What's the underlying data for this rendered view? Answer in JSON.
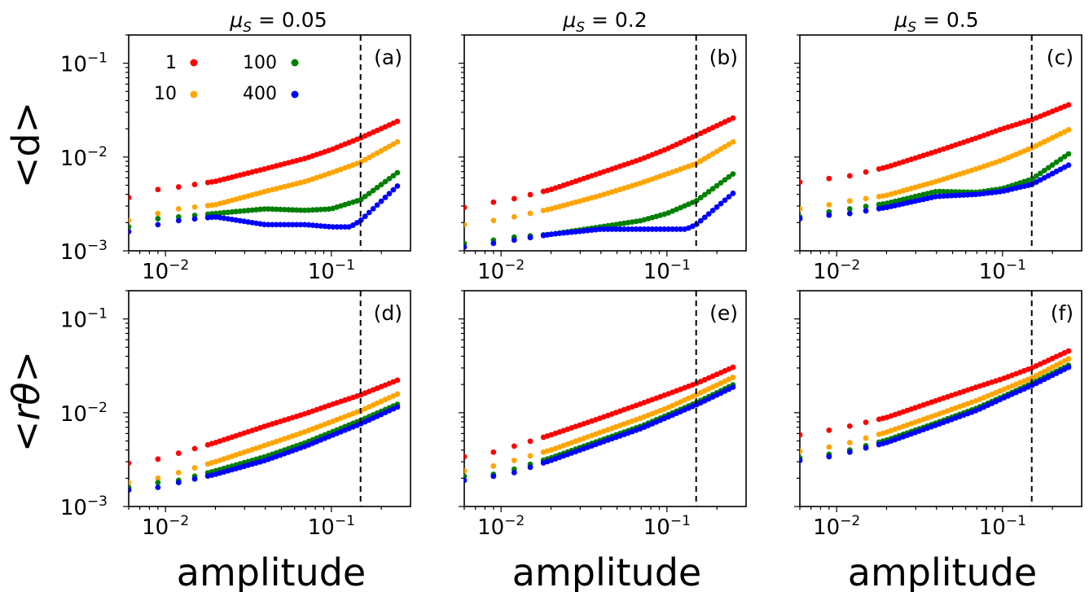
{
  "figure": {
    "ylabel_top": "<d>",
    "ylabel_bottom": "<rθ>",
    "xlabel": "amplitude",
    "column_titles": [
      "μ_S = 0.05",
      "μ_S = 0.2",
      "μ_S = 0.5"
    ],
    "legend": [
      {
        "label": "1",
        "color": "#ff0000"
      },
      {
        "label": "10",
        "color": "#ffa500"
      },
      {
        "label": "100",
        "color": "#008000"
      },
      {
        "label": "400",
        "color": "#0000ff"
      }
    ],
    "vline_x": 0.15,
    "x_ticks": [
      "10^-2",
      "10^-1"
    ],
    "y_ticks": [
      "10^-3",
      "10^-2",
      "10^-1"
    ]
  },
  "chart_data": [
    {
      "type": "scatter",
      "panel": "(a)",
      "title": "μ_S = 0.05",
      "ylabel": "<d>",
      "xlabel": "",
      "xscale": "log",
      "yscale": "log",
      "xlim": [
        0.006,
        0.3
      ],
      "ylim": [
        0.001,
        0.2
      ],
      "vline": 0.15,
      "series": [
        {
          "name": "1",
          "points": [
            [
              0.006,
              0.0037
            ],
            [
              0.009,
              0.0045
            ],
            [
              0.012,
              0.0048
            ],
            [
              0.02,
              0.0055
            ],
            [
              0.04,
              0.0075
            ],
            [
              0.07,
              0.0097
            ],
            [
              0.1,
              0.012
            ],
            [
              0.15,
              0.016
            ],
            [
              0.25,
              0.024
            ]
          ]
        },
        {
          "name": "10",
          "points": [
            [
              0.006,
              0.0021
            ],
            [
              0.009,
              0.0025
            ],
            [
              0.012,
              0.0028
            ],
            [
              0.02,
              0.0031
            ],
            [
              0.04,
              0.0043
            ],
            [
              0.07,
              0.0055
            ],
            [
              0.1,
              0.0068
            ],
            [
              0.15,
              0.0088
            ],
            [
              0.25,
              0.0145
            ]
          ]
        },
        {
          "name": "100",
          "points": [
            [
              0.006,
              0.0018
            ],
            [
              0.009,
              0.0022
            ],
            [
              0.012,
              0.0023
            ],
            [
              0.02,
              0.0025
            ],
            [
              0.04,
              0.0028
            ],
            [
              0.07,
              0.0027
            ],
            [
              0.1,
              0.0028
            ],
            [
              0.15,
              0.0035
            ],
            [
              0.25,
              0.0068
            ]
          ]
        },
        {
          "name": "400",
          "points": [
            [
              0.006,
              0.0016
            ],
            [
              0.009,
              0.0019
            ],
            [
              0.012,
              0.0021
            ],
            [
              0.02,
              0.0023
            ],
            [
              0.04,
              0.0019
            ],
            [
              0.07,
              0.0019
            ],
            [
              0.1,
              0.0018
            ],
            [
              0.13,
              0.0018
            ],
            [
              0.15,
              0.0021
            ],
            [
              0.25,
              0.0049
            ]
          ]
        }
      ]
    },
    {
      "type": "scatter",
      "panel": "(b)",
      "title": "μ_S = 0.2",
      "ylabel": "",
      "xlabel": "",
      "xscale": "log",
      "yscale": "log",
      "xlim": [
        0.006,
        0.3
      ],
      "ylim": [
        0.001,
        0.2
      ],
      "vline": 0.15,
      "series": [
        {
          "name": "1",
          "points": [
            [
              0.006,
              0.0029
            ],
            [
              0.009,
              0.0033
            ],
            [
              0.012,
              0.0036
            ],
            [
              0.02,
              0.0045
            ],
            [
              0.04,
              0.0068
            ],
            [
              0.07,
              0.0095
            ],
            [
              0.1,
              0.0122
            ],
            [
              0.15,
              0.017
            ],
            [
              0.25,
              0.026
            ]
          ]
        },
        {
          "name": "10",
          "points": [
            [
              0.006,
              0.0019
            ],
            [
              0.009,
              0.0021
            ],
            [
              0.012,
              0.0023
            ],
            [
              0.02,
              0.0028
            ],
            [
              0.04,
              0.0039
            ],
            [
              0.07,
              0.0053
            ],
            [
              0.1,
              0.0066
            ],
            [
              0.15,
              0.0085
            ],
            [
              0.25,
              0.0145
            ]
          ]
        },
        {
          "name": "100",
          "points": [
            [
              0.006,
              0.0012
            ],
            [
              0.009,
              0.0013
            ],
            [
              0.012,
              0.0014
            ],
            [
              0.02,
              0.0015
            ],
            [
              0.04,
              0.0018
            ],
            [
              0.07,
              0.0021
            ],
            [
              0.1,
              0.0025
            ],
            [
              0.15,
              0.0034
            ],
            [
              0.25,
              0.0066
            ]
          ]
        },
        {
          "name": "400",
          "points": [
            [
              0.006,
              0.0011
            ],
            [
              0.009,
              0.0012
            ],
            [
              0.012,
              0.0013
            ],
            [
              0.02,
              0.0015
            ],
            [
              0.04,
              0.0017
            ],
            [
              0.07,
              0.0017
            ],
            [
              0.1,
              0.0017
            ],
            [
              0.13,
              0.0017
            ],
            [
              0.15,
              0.0019
            ],
            [
              0.25,
              0.0041
            ]
          ]
        }
      ]
    },
    {
      "type": "scatter",
      "panel": "(c)",
      "title": "μ_S = 0.5",
      "ylabel": "",
      "xlabel": "",
      "xscale": "log",
      "yscale": "log",
      "xlim": [
        0.006,
        0.3
      ],
      "ylim": [
        0.001,
        0.2
      ],
      "vline": 0.15,
      "series": [
        {
          "name": "1",
          "points": [
            [
              0.006,
              0.0054
            ],
            [
              0.009,
              0.0059
            ],
            [
              0.012,
              0.0063
            ],
            [
              0.02,
              0.0078
            ],
            [
              0.04,
              0.0115
            ],
            [
              0.07,
              0.016
            ],
            [
              0.1,
              0.02
            ],
            [
              0.15,
              0.025
            ],
            [
              0.25,
              0.036
            ]
          ]
        },
        {
          "name": "10",
          "points": [
            [
              0.006,
              0.0028
            ],
            [
              0.009,
              0.0031
            ],
            [
              0.012,
              0.0034
            ],
            [
              0.02,
              0.0039
            ],
            [
              0.04,
              0.0055
            ],
            [
              0.07,
              0.0075
            ],
            [
              0.1,
              0.0093
            ],
            [
              0.15,
              0.0125
            ],
            [
              0.25,
              0.0195
            ]
          ]
        },
        {
          "name": "100",
          "points": [
            [
              0.006,
              0.0023
            ],
            [
              0.009,
              0.0026
            ],
            [
              0.012,
              0.0028
            ],
            [
              0.02,
              0.0032
            ],
            [
              0.04,
              0.0043
            ],
            [
              0.07,
              0.0042
            ],
            [
              0.1,
              0.0046
            ],
            [
              0.15,
              0.0058
            ],
            [
              0.25,
              0.0108
            ]
          ]
        },
        {
          "name": "400",
          "points": [
            [
              0.006,
              0.0022
            ],
            [
              0.009,
              0.0024
            ],
            [
              0.012,
              0.0025
            ],
            [
              0.02,
              0.0029
            ],
            [
              0.04,
              0.0038
            ],
            [
              0.07,
              0.004
            ],
            [
              0.1,
              0.0043
            ],
            [
              0.15,
              0.0051
            ],
            [
              0.25,
              0.0082
            ]
          ]
        }
      ]
    },
    {
      "type": "scatter",
      "panel": "(d)",
      "title": "",
      "ylabel": "<rθ>",
      "xlabel": "amplitude",
      "xscale": "log",
      "yscale": "log",
      "xlim": [
        0.006,
        0.3
      ],
      "ylim": [
        0.001,
        0.2
      ],
      "vline": 0.15,
      "series": [
        {
          "name": "1",
          "points": [
            [
              0.006,
              0.0029
            ],
            [
              0.009,
              0.0032
            ],
            [
              0.012,
              0.0037
            ],
            [
              0.02,
              0.0048
            ],
            [
              0.04,
              0.0072
            ],
            [
              0.07,
              0.0098
            ],
            [
              0.1,
              0.0122
            ],
            [
              0.15,
              0.0155
            ],
            [
              0.25,
              0.0222
            ]
          ]
        },
        {
          "name": "10",
          "points": [
            [
              0.006,
              0.0018
            ],
            [
              0.009,
              0.002
            ],
            [
              0.012,
              0.0023
            ],
            [
              0.02,
              0.003
            ],
            [
              0.04,
              0.0045
            ],
            [
              0.07,
              0.0063
            ],
            [
              0.1,
              0.008
            ],
            [
              0.15,
              0.0105
            ],
            [
              0.25,
              0.0158
            ]
          ]
        },
        {
          "name": "100",
          "points": [
            [
              0.006,
              0.0016
            ],
            [
              0.009,
              0.0018
            ],
            [
              0.012,
              0.0019
            ],
            [
              0.02,
              0.0024
            ],
            [
              0.04,
              0.0034
            ],
            [
              0.07,
              0.0048
            ],
            [
              0.1,
              0.0062
            ],
            [
              0.15,
              0.0083
            ],
            [
              0.25,
              0.0123
            ]
          ]
        },
        {
          "name": "400",
          "points": [
            [
              0.006,
              0.0015
            ],
            [
              0.009,
              0.0016
            ],
            [
              0.012,
              0.0018
            ],
            [
              0.02,
              0.0022
            ],
            [
              0.04,
              0.0031
            ],
            [
              0.07,
              0.0044
            ],
            [
              0.1,
              0.0057
            ],
            [
              0.15,
              0.0076
            ],
            [
              0.25,
              0.0115
            ]
          ]
        }
      ]
    },
    {
      "type": "scatter",
      "panel": "(e)",
      "title": "",
      "ylabel": "",
      "xlabel": "amplitude",
      "xscale": "log",
      "yscale": "log",
      "xlim": [
        0.006,
        0.3
      ],
      "ylim": [
        0.001,
        0.2
      ],
      "vline": 0.15,
      "series": [
        {
          "name": "1",
          "points": [
            [
              0.006,
              0.0034
            ],
            [
              0.009,
              0.0038
            ],
            [
              0.012,
              0.0044
            ],
            [
              0.02,
              0.0058
            ],
            [
              0.04,
              0.0088
            ],
            [
              0.07,
              0.0125
            ],
            [
              0.1,
              0.0157
            ],
            [
              0.15,
              0.0205
            ],
            [
              0.25,
              0.0305
            ]
          ]
        },
        {
          "name": "10",
          "points": [
            [
              0.006,
              0.0024
            ],
            [
              0.009,
              0.0027
            ],
            [
              0.012,
              0.0031
            ],
            [
              0.02,
              0.004
            ],
            [
              0.04,
              0.0062
            ],
            [
              0.07,
              0.0088
            ],
            [
              0.1,
              0.0112
            ],
            [
              0.15,
              0.0155
            ],
            [
              0.25,
              0.0238
            ]
          ]
        },
        {
          "name": "100",
          "points": [
            [
              0.006,
              0.0021
            ],
            [
              0.009,
              0.0022
            ],
            [
              0.012,
              0.0025
            ],
            [
              0.02,
              0.0033
            ],
            [
              0.04,
              0.0051
            ],
            [
              0.07,
              0.0072
            ],
            [
              0.1,
              0.0094
            ],
            [
              0.15,
              0.0128
            ],
            [
              0.25,
              0.0198
            ]
          ]
        },
        {
          "name": "400",
          "points": [
            [
              0.006,
              0.0019
            ],
            [
              0.009,
              0.0021
            ],
            [
              0.012,
              0.0023
            ],
            [
              0.02,
              0.0031
            ],
            [
              0.04,
              0.0048
            ],
            [
              0.07,
              0.0068
            ],
            [
              0.1,
              0.0089
            ],
            [
              0.15,
              0.0121
            ],
            [
              0.25,
              0.0187
            ]
          ]
        }
      ]
    },
    {
      "type": "scatter",
      "panel": "(f)",
      "title": "",
      "ylabel": "",
      "xlabel": "amplitude",
      "xscale": "log",
      "yscale": "log",
      "xlim": [
        0.006,
        0.3
      ],
      "ylim": [
        0.001,
        0.2
      ],
      "vline": 0.15,
      "series": [
        {
          "name": "1",
          "points": [
            [
              0.006,
              0.0058
            ],
            [
              0.009,
              0.0065
            ],
            [
              0.012,
              0.0072
            ],
            [
              0.02,
              0.0089
            ],
            [
              0.04,
              0.0135
            ],
            [
              0.07,
              0.0188
            ],
            [
              0.1,
              0.023
            ],
            [
              0.15,
              0.03
            ],
            [
              0.25,
              0.0455
            ]
          ]
        },
        {
          "name": "10",
          "points": [
            [
              0.006,
              0.0039
            ],
            [
              0.009,
              0.0043
            ],
            [
              0.012,
              0.0048
            ],
            [
              0.02,
              0.0062
            ],
            [
              0.04,
              0.0095
            ],
            [
              0.07,
              0.0135
            ],
            [
              0.1,
              0.0175
            ],
            [
              0.15,
              0.0235
            ],
            [
              0.25,
              0.0375
            ]
          ]
        },
        {
          "name": "100",
          "points": [
            [
              0.006,
              0.0033
            ],
            [
              0.009,
              0.0036
            ],
            [
              0.012,
              0.004
            ],
            [
              0.02,
              0.0051
            ],
            [
              0.04,
              0.0078
            ],
            [
              0.07,
              0.0112
            ],
            [
              0.1,
              0.0148
            ],
            [
              0.15,
              0.0205
            ],
            [
              0.25,
              0.032
            ]
          ]
        },
        {
          "name": "400",
          "points": [
            [
              0.006,
              0.0031
            ],
            [
              0.009,
              0.0034
            ],
            [
              0.012,
              0.0038
            ],
            [
              0.02,
              0.0048
            ],
            [
              0.04,
              0.0074
            ],
            [
              0.07,
              0.0106
            ],
            [
              0.1,
              0.0142
            ],
            [
              0.15,
              0.0195
            ],
            [
              0.25,
              0.0305
            ]
          ]
        }
      ]
    }
  ]
}
